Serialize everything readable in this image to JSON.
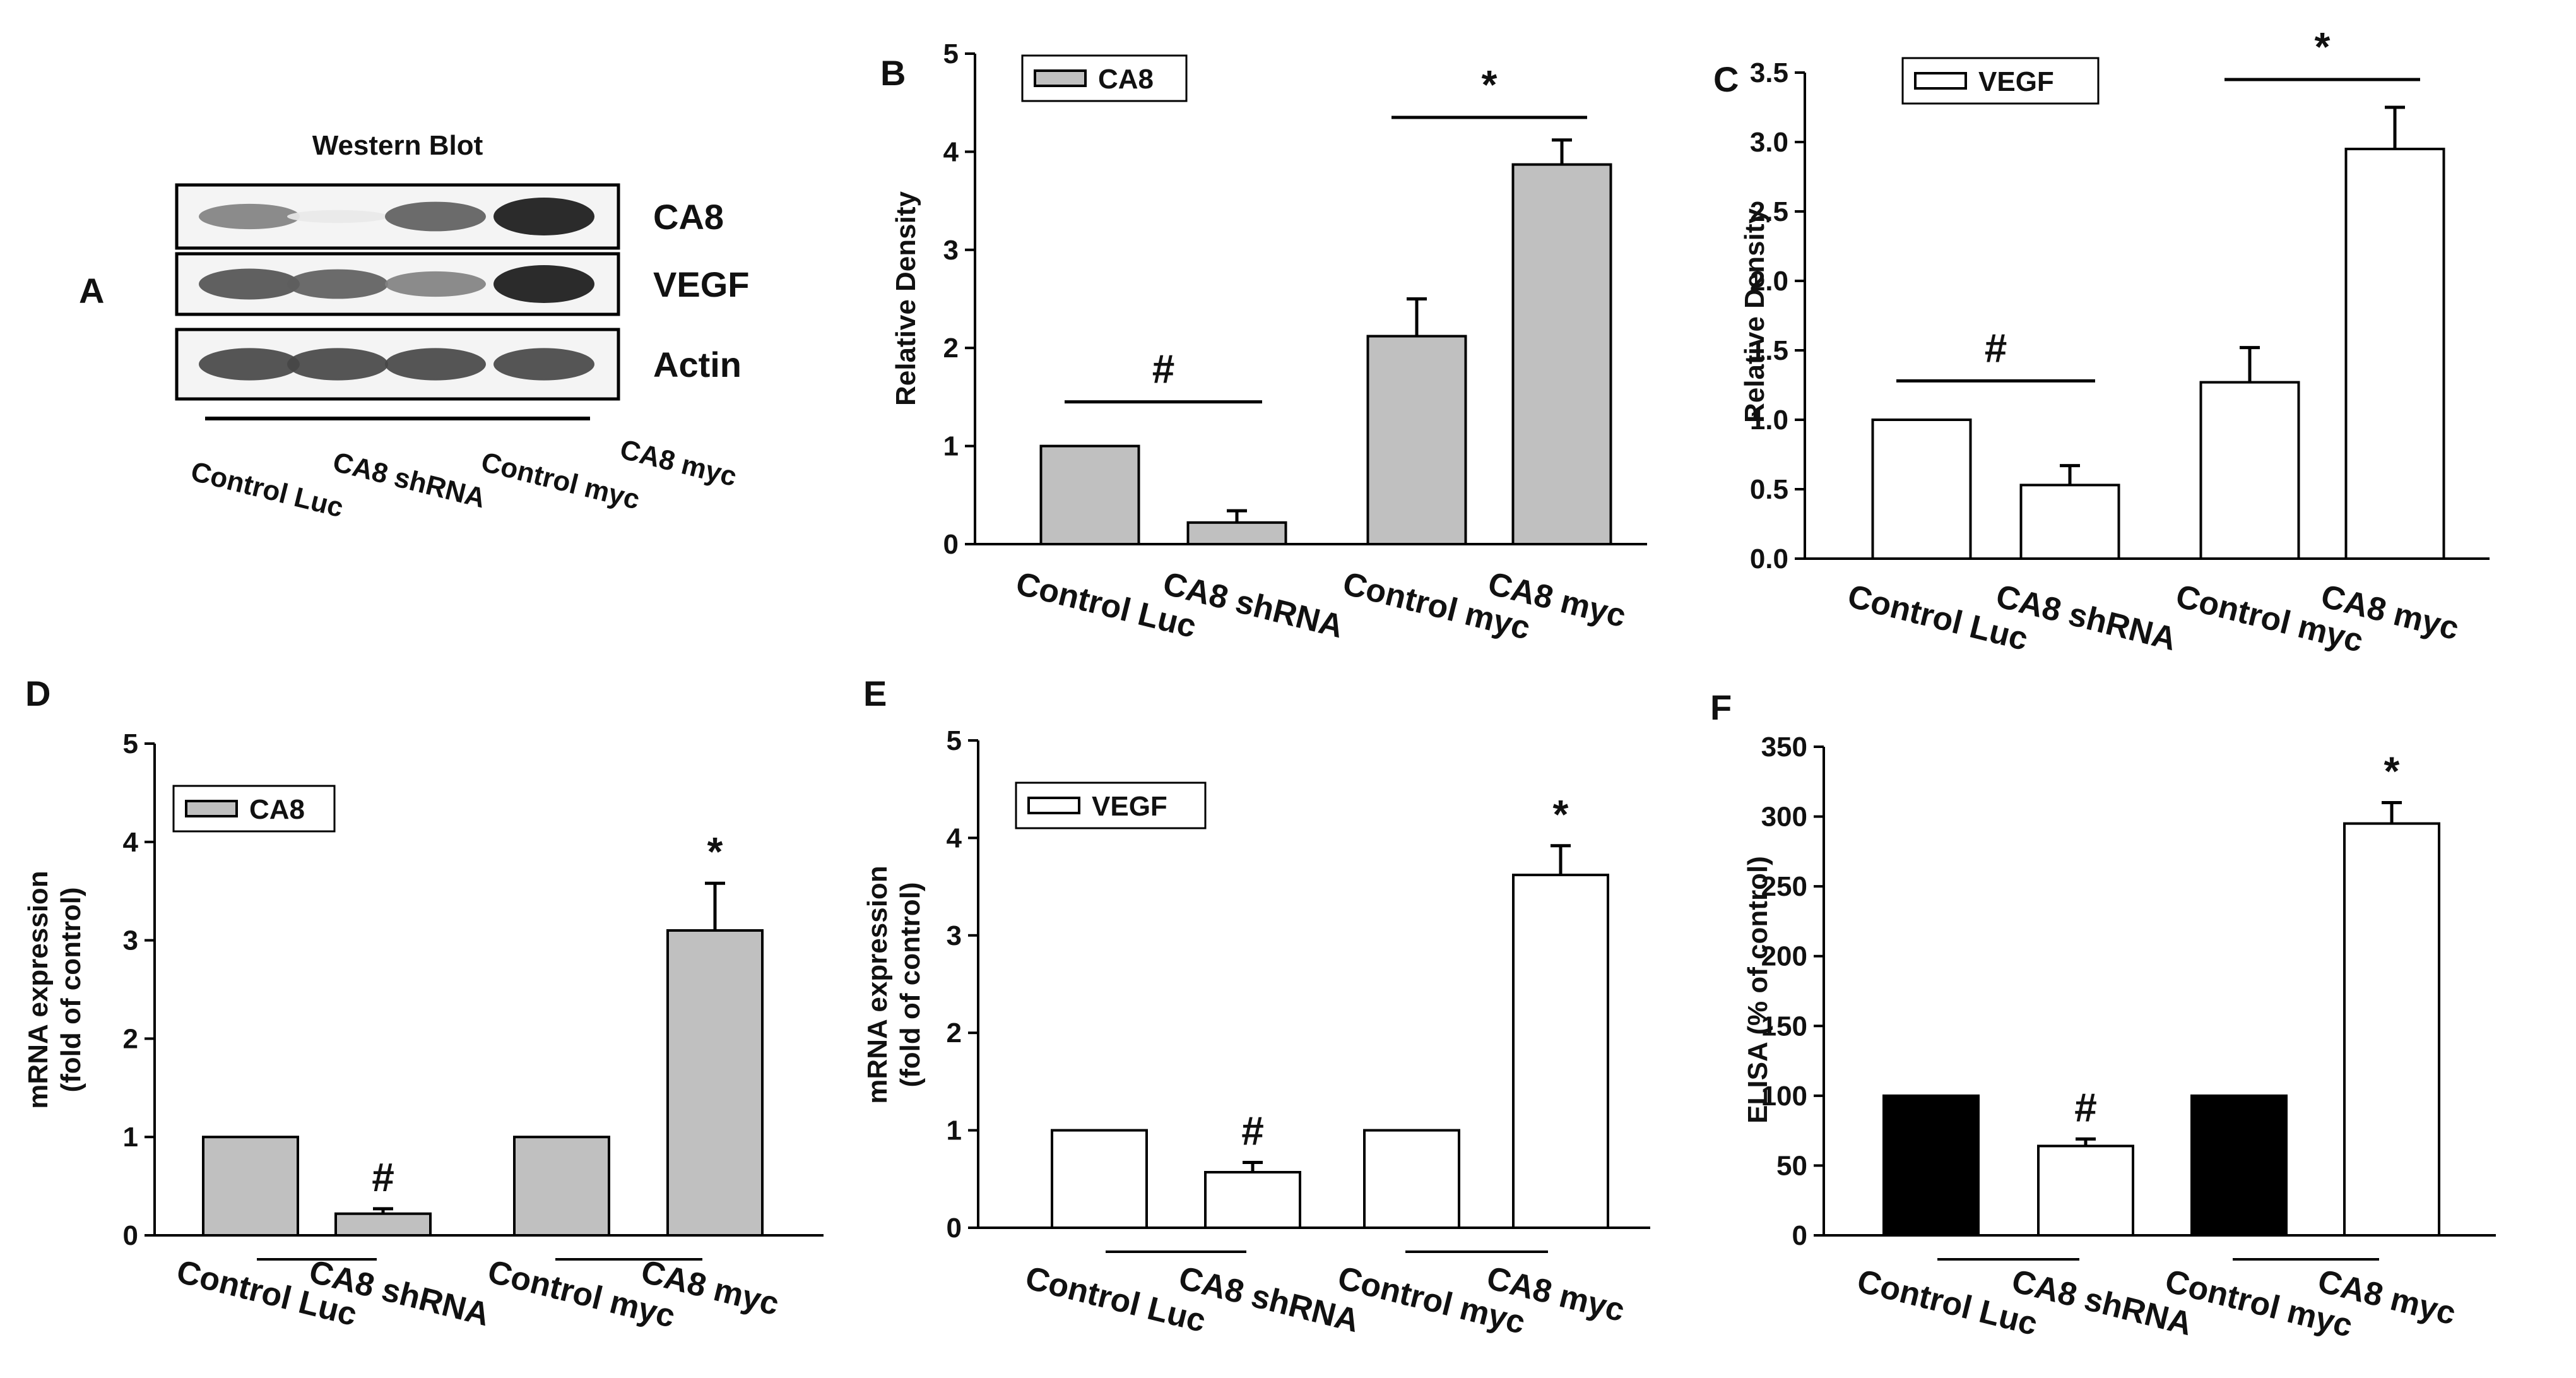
{
  "chart_data": [
    {
      "panel": "A",
      "type": "western-blot",
      "title": "Western Blot",
      "bands": [
        "CA8",
        "VEGF",
        "Actin"
      ],
      "band_intensity": [
        [
          0.55,
          0.1,
          0.7,
          1.0
        ],
        [
          0.75,
          0.7,
          0.55,
          1.0
        ],
        [
          0.8,
          0.8,
          0.8,
          0.8
        ]
      ],
      "categories": [
        "Control Luc",
        "CA8 shRNA",
        "Control myc",
        "CA8 myc"
      ]
    },
    {
      "panel": "B",
      "type": "bar",
      "legend": "CA8",
      "categories": [
        "Control Luc",
        "CA8 shRNA",
        "Control myc",
        "CA8 myc"
      ],
      "values": [
        1.0,
        0.22,
        2.12,
        3.87
      ],
      "errors": [
        0,
        0.12,
        0.38,
        0.25
      ],
      "fill": [
        "#c0c0c0",
        "#c0c0c0",
        "#c0c0c0",
        "#c0c0c0"
      ],
      "ylabel": "Relative Density",
      "ylim": [
        0,
        5
      ],
      "yticks": [
        "0",
        "1",
        "2",
        "3",
        "4",
        "5"
      ],
      "significance": [
        {
          "mark": "#",
          "from": 0,
          "to": 1,
          "y": 1.45
        },
        {
          "mark": "*",
          "from": 2,
          "to": 3,
          "y": 4.35
        }
      ]
    },
    {
      "panel": "C",
      "type": "bar",
      "legend": "VEGF",
      "categories": [
        "Control Luc",
        "CA8 shRNA",
        "Control myc",
        "CA8 myc"
      ],
      "values": [
        1.0,
        0.53,
        1.27,
        2.95
      ],
      "errors": [
        0,
        0.14,
        0.25,
        0.3
      ],
      "fill": [
        "#ffffff",
        "#ffffff",
        "#ffffff",
        "#ffffff"
      ],
      "ylabel": "Relative Density",
      "ylim": [
        0,
        3.5
      ],
      "yticks": [
        "0.0",
        "0.5",
        "1.0",
        "1.5",
        "2.0",
        "2.5",
        "3.0",
        "3.5"
      ],
      "significance": [
        {
          "mark": "#",
          "from": 0,
          "to": 1,
          "y": 1.28
        },
        {
          "mark": "*",
          "from": 2,
          "to": 3,
          "y": 3.45
        }
      ]
    },
    {
      "panel": "D",
      "type": "bar",
      "legend": "CA8",
      "categories": [
        "Control Luc",
        "CA8 shRNA",
        "Control myc",
        "CA8 myc"
      ],
      "values": [
        1.0,
        0.22,
        1.0,
        3.1
      ],
      "errors": [
        0,
        0.05,
        0,
        0.48
      ],
      "fill": [
        "#c0c0c0",
        "#c0c0c0",
        "#c0c0c0",
        "#c0c0c0"
      ],
      "ylabel": "mRNA expression",
      "ylabel2": "(fold of control)",
      "ylim": [
        0,
        5
      ],
      "yticks": [
        "0",
        "1",
        "2",
        "3",
        "4",
        "5"
      ],
      "marks": [
        {
          "mark": "#",
          "bar": 1
        },
        {
          "mark": "*",
          "bar": 3
        }
      ]
    },
    {
      "panel": "E",
      "type": "bar",
      "legend": "VEGF",
      "categories": [
        "Control Luc",
        "CA8 shRNA",
        "Control myc",
        "CA8 myc"
      ],
      "values": [
        1.0,
        0.57,
        1.0,
        3.62
      ],
      "errors": [
        0,
        0.1,
        0,
        0.3
      ],
      "fill": [
        "#ffffff",
        "#ffffff",
        "#ffffff",
        "#ffffff"
      ],
      "ylabel": "mRNA expression",
      "ylabel2": "(fold of control)",
      "ylim": [
        0,
        5
      ],
      "yticks": [
        "0",
        "1",
        "2",
        "3",
        "4",
        "5"
      ],
      "marks": [
        {
          "mark": "#",
          "bar": 1
        },
        {
          "mark": "*",
          "bar": 3
        }
      ]
    },
    {
      "panel": "F",
      "type": "bar",
      "categories": [
        "Control Luc",
        "CA8 shRNA",
        "Control myc",
        "CA8 myc"
      ],
      "values": [
        100,
        64,
        100,
        295
      ],
      "errors": [
        0,
        5,
        0,
        15
      ],
      "fill": [
        "#000000",
        "#ffffff",
        "#000000",
        "#ffffff"
      ],
      "ylabel": "ELISA (% of control)",
      "ylim": [
        0,
        350
      ],
      "yticks": [
        "0",
        "50",
        "100",
        "150",
        "200",
        "250",
        "300",
        "350"
      ],
      "marks": [
        {
          "mark": "#",
          "bar": 1
        },
        {
          "mark": "*",
          "bar": 3
        }
      ]
    }
  ]
}
